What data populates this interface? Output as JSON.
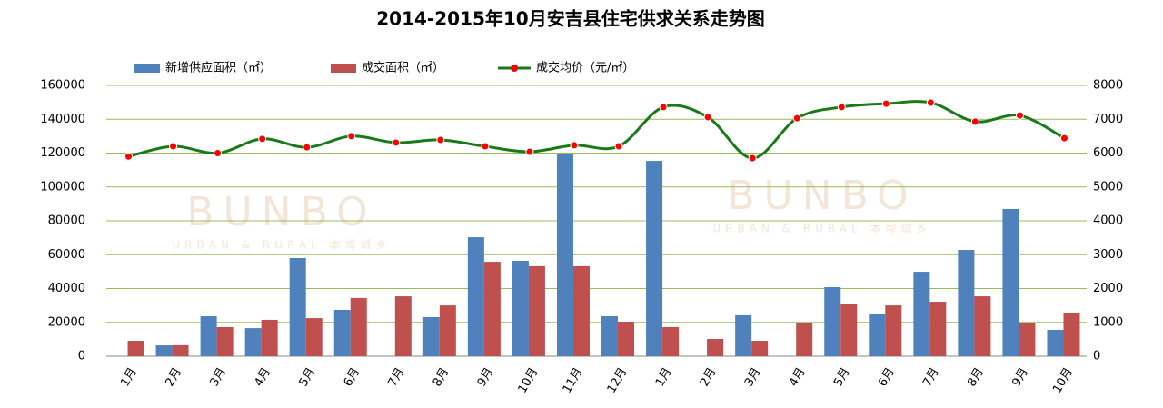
{
  "chart_data": {
    "type": "bar-line",
    "title": "2014-2015年10月安吉县住宅供求关系走势图",
    "watermark": {
      "logo": "BUNBO",
      "tagline": "URBAN & RURAL 本埠城乡"
    },
    "categories": [
      "1月",
      "2月",
      "3月",
      "4月",
      "5月",
      "6月",
      "7月",
      "8月",
      "9月",
      "10月",
      "11月",
      "12月",
      "1月",
      "2月",
      "3月",
      "4月",
      "5月",
      "6月",
      "7月",
      "8月",
      "9月",
      "10月"
    ],
    "series": [
      {
        "name": "新增供应面积（㎡）",
        "type": "bar",
        "color": "#4f81bd",
        "values": [
          0,
          6400,
          23600,
          16600,
          58000,
          27400,
          0,
          23100,
          70300,
          56400,
          119700,
          23600,
          115400,
          0,
          24200,
          0,
          40800,
          24700,
          49900,
          62800,
          87000,
          15600
        ]
      },
      {
        "name": "成交面积（㎡）",
        "type": "bar",
        "color": "#c0504d",
        "values": [
          9100,
          6500,
          17200,
          21500,
          22500,
          34400,
          35400,
          30000,
          55800,
          53200,
          53200,
          20400,
          17200,
          10200,
          9100,
          19900,
          31100,
          30000,
          32200,
          35400,
          19900,
          25800
        ]
      },
      {
        "name": "成交均价（元/㎡）",
        "type": "line",
        "axis": "y2",
        "color": "#1a7a1a",
        "marker_color": "#ff0000",
        "values": [
          5900,
          6200,
          6000,
          6420,
          6170,
          6500,
          6310,
          6390,
          6200,
          6040,
          6230,
          6200,
          7360,
          7060,
          5850,
          7030,
          7360,
          7460,
          7490,
          6930,
          7110,
          6440
        ]
      }
    ],
    "ylim": [
      0,
      160000
    ],
    "yticks": [
      0,
      20000,
      40000,
      60000,
      80000,
      100000,
      120000,
      140000,
      160000
    ],
    "y2lim": [
      0,
      8000
    ],
    "y2ticks": [
      0,
      1000,
      2000,
      3000,
      4000,
      5000,
      6000,
      7000,
      8000
    ],
    "grid": true,
    "grid_color": "#9bbb59",
    "legend": "top"
  }
}
